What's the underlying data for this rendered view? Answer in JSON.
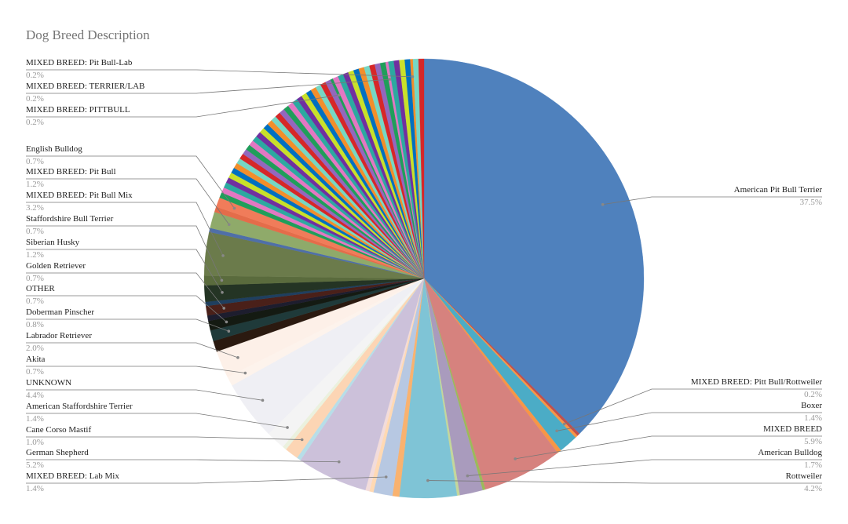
{
  "chart_data": {
    "type": "pie",
    "title": "Dog Breed Description",
    "categories": [
      "American Pit Bull Terrier",
      null,
      "MIXED BREED: Pitt Bull/Rottweiler",
      "Boxer",
      null,
      "MIXED BREED",
      null,
      "American Bulldog",
      null,
      "Rottweiler",
      null,
      "MIXED BREED: Lab Mix",
      null,
      null,
      "German Shepherd",
      null,
      "Cane Corso Mastif",
      null,
      "American Staffordshire Terrier",
      "UNKNOWN",
      "Akita",
      "Labrador Retriever",
      null,
      "Doberman Pinscher",
      "OTHER",
      null,
      "Golden Retriever",
      null,
      "Siberian Husky",
      "Staffordshire Bull Terrier",
      "MIXED BREED: Pit Bull Mix",
      null,
      "MIXED BREED: Pit Bull",
      null,
      "English Bulldog",
      null,
      null,
      null,
      null,
      null,
      null,
      null,
      null,
      null,
      null,
      null,
      null,
      null,
      null,
      null,
      null,
      null,
      null,
      null,
      null,
      null,
      null,
      null,
      null,
      null,
      null,
      null,
      null,
      null,
      null,
      "MIXED BREED: PITTBULL",
      null,
      null,
      null,
      null,
      null,
      null,
      null,
      null,
      null,
      null,
      "MIXED BREED: TERRIER/LAB",
      null,
      null,
      null,
      null,
      "MIXED BREED: Pit Bull-Lab",
      null,
      null
    ],
    "values": [
      37.5,
      0.2,
      0.2,
      1.4,
      0.3,
      5.9,
      0.2,
      1.7,
      0.2,
      4.2,
      0.5,
      1.4,
      0.3,
      0.3,
      5.2,
      0.3,
      1.0,
      0.3,
      1.4,
      4.4,
      0.7,
      2.0,
      0.8,
      0.8,
      0.7,
      0.4,
      0.7,
      0.3,
      1.2,
      0.7,
      3.2,
      0.3,
      1.2,
      0.4,
      0.7,
      0.4,
      0.4,
      0.4,
      0.4,
      0.4,
      0.4,
      0.4,
      0.4,
      0.4,
      0.4,
      0.4,
      0.4,
      0.4,
      0.4,
      0.4,
      0.4,
      0.4,
      0.4,
      0.4,
      0.4,
      0.4,
      0.4,
      0.4,
      0.4,
      0.4,
      0.4,
      0.4,
      0.4,
      0.4,
      0.4,
      0.2,
      0.4,
      0.4,
      0.4,
      0.4,
      0.4,
      0.4,
      0.4,
      0.4,
      0.4,
      0.4,
      0.2,
      0.4,
      0.4,
      0.4,
      0.4,
      0.2,
      0.4,
      0.4
    ],
    "value_labels": [
      "37.5%",
      null,
      "0.2%",
      "1.4%",
      null,
      "5.9%",
      null,
      "1.7%",
      null,
      "4.2%",
      null,
      "1.4%",
      null,
      null,
      "5.2%",
      null,
      "1.0%",
      null,
      "1.4%",
      "4.4%",
      "0.7%",
      "2.0%",
      null,
      "0.8%",
      "0.7%",
      null,
      "0.7%",
      null,
      "1.2%",
      "0.7%",
      "3.2%",
      null,
      "1.2%",
      null,
      "0.7%",
      null,
      null,
      null,
      null,
      null,
      null,
      null,
      null,
      null,
      null,
      null,
      null,
      null,
      null,
      null,
      null,
      null,
      null,
      null,
      null,
      null,
      null,
      null,
      null,
      null,
      null,
      null,
      null,
      null,
      null,
      "0.2%",
      null,
      null,
      null,
      null,
      null,
      null,
      null,
      null,
      null,
      null,
      "0.2%",
      null,
      null,
      null,
      null,
      "0.2%",
      null,
      null
    ],
    "colors": [
      "#4f81bd",
      "#c0504d",
      "#f79646",
      "#4bacc6",
      "#f79646",
      "#d6827e",
      "#9bbb59",
      "#a99bbd",
      "#c4d79b",
      "#7fc4d6",
      "#f9b26f",
      "#b7c8e2",
      "#ffd9b3",
      "#f2dcdb",
      "#ccc1da",
      "#b7dee8",
      "#fcd5b4",
      "#ebf1de",
      "#f4f4f4",
      "#efeff4",
      "#fdf3ec",
      "#fdf0e8",
      "#2b1a10",
      "#1f3a3a",
      "#141a12",
      "#1d1d2e",
      "#4a2019",
      "#1f3f5f",
      "#243424",
      "#5a6b3d",
      "#6b7b4b",
      "#4f6fa8",
      "#8faa6a",
      "#e46c4a",
      "#f07c5a",
      "#1f9e5a",
      "#e377c2",
      "#2ca9a0",
      "#7030a0",
      "#c9e02a",
      "#0070c0",
      "#f28e2b",
      "#76d7c4",
      "#d62728",
      "#9467bd",
      "#1f9e5a",
      "#e377c2",
      "#2ca9a0",
      "#7030a0",
      "#c9e02a",
      "#0070c0",
      "#f28e2b",
      "#76d7c4",
      "#d62728",
      "#9467bd",
      "#1f9e5a",
      "#e377c2",
      "#2ca9a0",
      "#7030a0",
      "#c9e02a",
      "#0070c0",
      "#f28e2b",
      "#76d7c4",
      "#d62728",
      "#9467bd",
      "#1f9e5a",
      "#e377c2",
      "#2ca9a0",
      "#7030a0",
      "#c9e02a",
      "#0070c0",
      "#f28e2b",
      "#76d7c4",
      "#d62728",
      "#9467bd",
      "#1f9e5a",
      "#e377c2",
      "#2ca9a0",
      "#7030a0",
      "#c9e02a",
      "#0070c0",
      "#f28e2b",
      "#76d7c4",
      "#d62728"
    ]
  }
}
